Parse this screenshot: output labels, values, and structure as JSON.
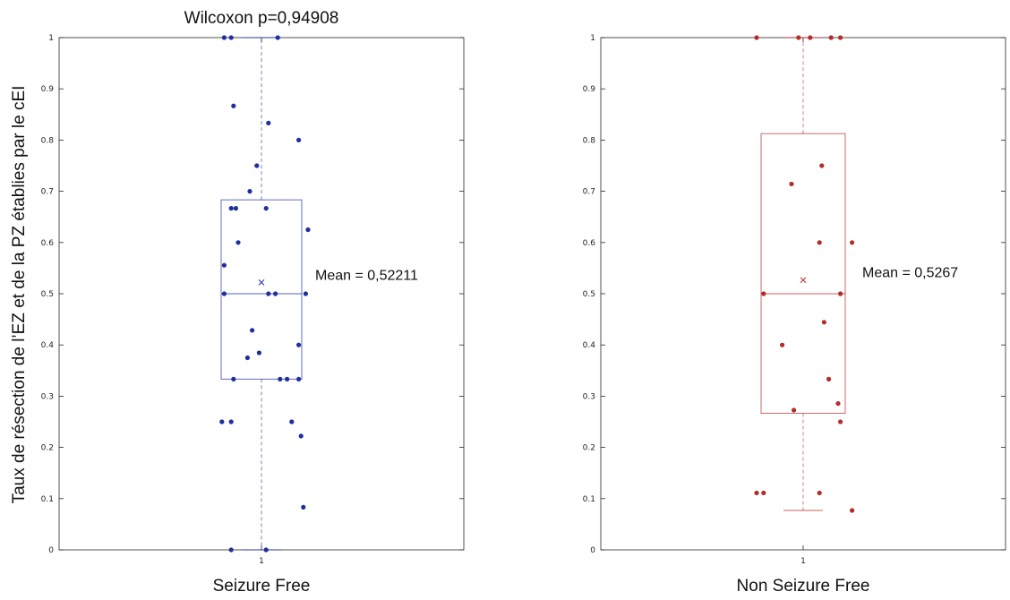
{
  "ylabel": "Taux de résection de l’EZ et de la PZ établies par le cEI",
  "chart_data": [
    {
      "type": "box",
      "title": "Wilcoxon p=0,94908",
      "xlabel": "Seizure Free",
      "categories": [
        "1"
      ],
      "ylim": [
        0,
        1
      ],
      "yticks": [
        "0",
        "0.1",
        "0.2",
        "0.3",
        "0.4",
        "0.5",
        "0.6",
        "0.7",
        "0.8",
        "0.9",
        "1"
      ],
      "color": "#1e2f9e",
      "box": {
        "q1": 0.3333,
        "median": 0.5,
        "q3": 0.6833,
        "whisker_low": 0,
        "whisker_high": 1,
        "mean": 0.52211
      },
      "annotation": "Mean = 0,52211",
      "points": [
        {
          "j": -0.16,
          "y": 1
        },
        {
          "j": -0.13,
          "y": 1
        },
        {
          "j": 0.07,
          "y": 1
        },
        {
          "j": -0.12,
          "y": 0.8667
        },
        {
          "j": 0.03,
          "y": 0.8333
        },
        {
          "j": 0.16,
          "y": 0.8
        },
        {
          "j": -0.02,
          "y": 0.75
        },
        {
          "j": -0.05,
          "y": 0.7
        },
        {
          "j": -0.13,
          "y": 0.6667
        },
        {
          "j": -0.11,
          "y": 0.6667
        },
        {
          "j": 0.02,
          "y": 0.6667
        },
        {
          "j": 0.2,
          "y": 0.625
        },
        {
          "j": -0.1,
          "y": 0.6
        },
        {
          "j": -0.16,
          "y": 0.5556
        },
        {
          "j": -0.16,
          "y": 0.5
        },
        {
          "j": 0.03,
          "y": 0.5
        },
        {
          "j": 0.06,
          "y": 0.5
        },
        {
          "j": 0.19,
          "y": 0.5
        },
        {
          "j": -0.04,
          "y": 0.4286
        },
        {
          "j": 0.16,
          "y": 0.4
        },
        {
          "j": -0.01,
          "y": 0.3846
        },
        {
          "j": -0.06,
          "y": 0.375
        },
        {
          "j": -0.12,
          "y": 0.3333
        },
        {
          "j": 0.08,
          "y": 0.3333
        },
        {
          "j": 0.11,
          "y": 0.3333
        },
        {
          "j": 0.16,
          "y": 0.3333
        },
        {
          "j": -0.17,
          "y": 0.25
        },
        {
          "j": -0.13,
          "y": 0.25
        },
        {
          "j": 0.13,
          "y": 0.25
        },
        {
          "j": 0.17,
          "y": 0.2222
        },
        {
          "j": 0.18,
          "y": 0.0833
        },
        {
          "j": -0.13,
          "y": 0
        },
        {
          "j": 0.02,
          "y": 0
        }
      ]
    },
    {
      "type": "box",
      "title": "",
      "xlabel": "Non Seizure Free",
      "categories": [
        "1"
      ],
      "ylim": [
        0,
        1
      ],
      "yticks": [
        "0",
        "0.1",
        "0.2",
        "0.3",
        "0.4",
        "0.5",
        "0.6",
        "0.7",
        "0.8",
        "0.9",
        "1"
      ],
      "color": "#b52a2a",
      "box": {
        "q1": 0.2667,
        "median": 0.5,
        "q3": 0.8125,
        "whisker_low": 0.0769,
        "whisker_high": 1,
        "mean": 0.5267
      },
      "annotation": "Mean = 0,5267",
      "points": [
        {
          "j": -0.2,
          "y": 1
        },
        {
          "j": -0.02,
          "y": 1
        },
        {
          "j": 0.03,
          "y": 1
        },
        {
          "j": 0.12,
          "y": 1
        },
        {
          "j": 0.16,
          "y": 1
        },
        {
          "j": 0.08,
          "y": 0.75
        },
        {
          "j": -0.05,
          "y": 0.7143
        },
        {
          "j": 0.07,
          "y": 0.6
        },
        {
          "j": 0.21,
          "y": 0.6
        },
        {
          "j": -0.17,
          "y": 0.5
        },
        {
          "j": 0.16,
          "y": 0.5
        },
        {
          "j": 0.09,
          "y": 0.4444
        },
        {
          "j": -0.09,
          "y": 0.4
        },
        {
          "j": 0.11,
          "y": 0.3333
        },
        {
          "j": 0.15,
          "y": 0.2857
        },
        {
          "j": -0.04,
          "y": 0.2727
        },
        {
          "j": 0.16,
          "y": 0.25
        },
        {
          "j": -0.2,
          "y": 0.1111
        },
        {
          "j": -0.17,
          "y": 0.1111
        },
        {
          "j": 0.07,
          "y": 0.1111
        },
        {
          "j": 0.21,
          "y": 0.0769
        }
      ]
    }
  ]
}
